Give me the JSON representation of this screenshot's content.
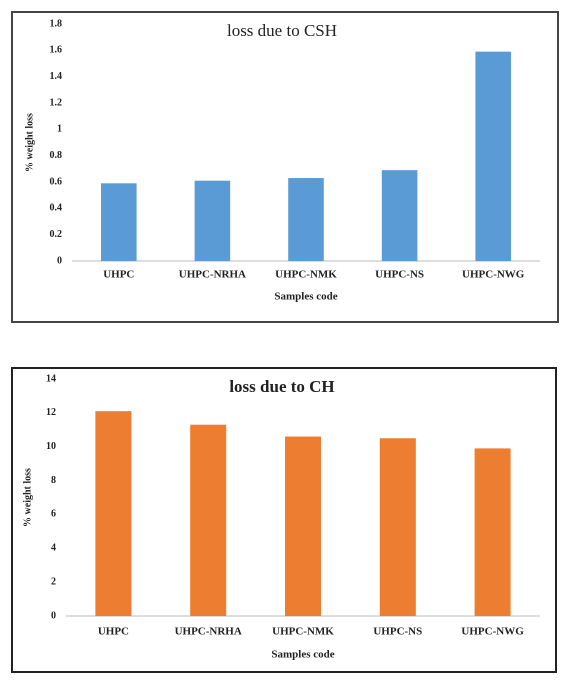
{
  "chart_data": [
    {
      "type": "bar",
      "title": "loss due to CSH",
      "y_label": "% weight loss",
      "x_label": "Samples code",
      "categories": [
        "UHPC",
        "UHPC-NRHA",
        "UHPC-NMK",
        "UHPC-NS",
        "UHPC-NWG"
      ],
      "values": [
        0.59,
        0.61,
        0.63,
        0.69,
        1.59
      ],
      "color": "#5b9bd5",
      "ylim": [
        0,
        1.8
      ],
      "yticks": [
        0,
        0.2,
        0.4,
        0.6,
        0.8,
        1,
        1.2,
        1.4,
        1.6,
        1.8
      ],
      "grid": false
    },
    {
      "type": "bar",
      "title": "loss due to CH",
      "y_label": "% weight loss",
      "x_label": "Samples code",
      "categories": [
        "UHPC",
        "UHPC-NRHA",
        "UHPC-NMK",
        "UHPC-NS",
        "UHPC-NWG"
      ],
      "values": [
        12.1,
        11.3,
        10.6,
        10.5,
        9.9
      ],
      "color": "#ed7d31",
      "ylim": [
        0,
        14
      ],
      "yticks": [
        0,
        2,
        4,
        6,
        8,
        10,
        12,
        14
      ],
      "grid": false
    }
  ]
}
